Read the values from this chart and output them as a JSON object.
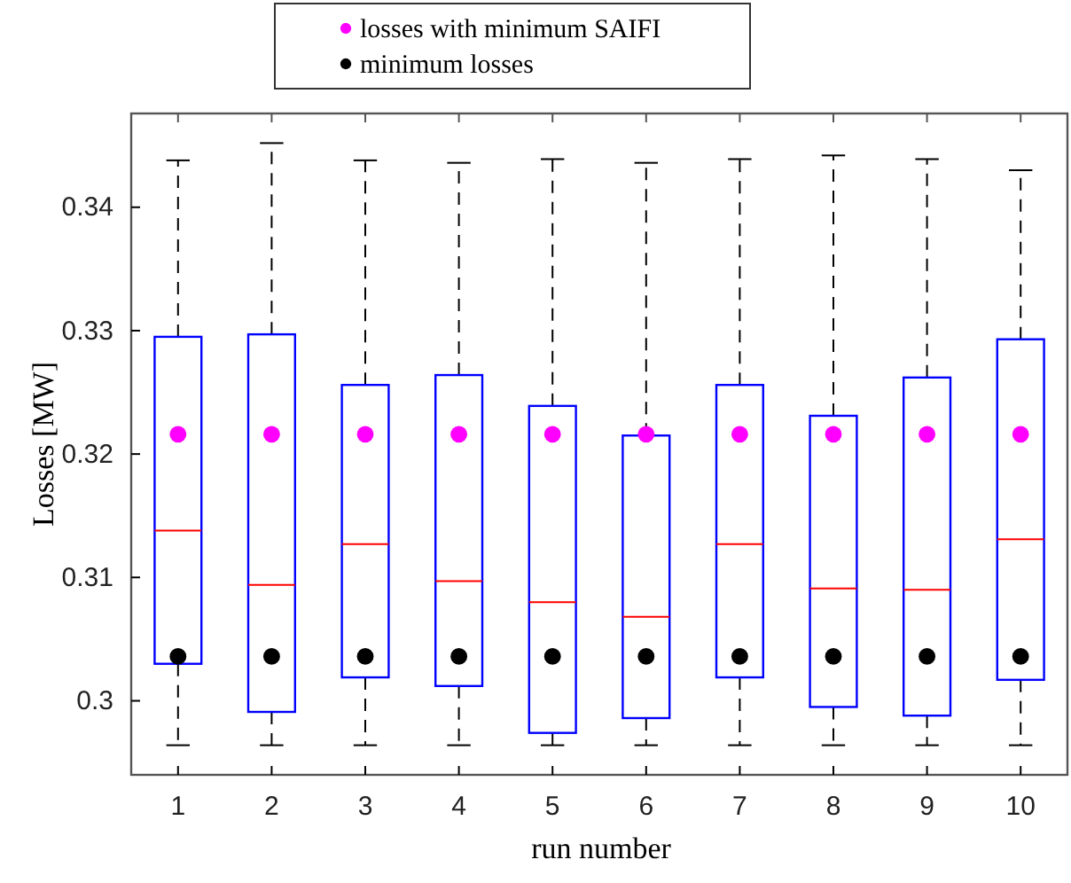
{
  "chart_data": {
    "type": "box",
    "xlabel": "run number",
    "ylabel": "Losses  [MW]",
    "categories": [
      "1",
      "2",
      "3",
      "4",
      "5",
      "6",
      "7",
      "8",
      "9",
      "10"
    ],
    "ylim": [
      0.294,
      0.3476
    ],
    "yticks": [
      0.3,
      0.31,
      0.32,
      0.33,
      0.34
    ],
    "grid": false,
    "legend": "top",
    "series": [
      {
        "color": "#0000ff",
        "boxes": [
          {
            "low": 0.2964,
            "q1": 0.303,
            "median": 0.3138,
            "q3": 0.3295,
            "high": 0.3438
          },
          {
            "low": 0.2964,
            "q1": 0.2991,
            "median": 0.3094,
            "q3": 0.3297,
            "high": 0.3452
          },
          {
            "low": 0.2964,
            "q1": 0.3019,
            "median": 0.3127,
            "q3": 0.3256,
            "high": 0.3438
          },
          {
            "low": 0.2964,
            "q1": 0.3012,
            "median": 0.3097,
            "q3": 0.3264,
            "high": 0.3436
          },
          {
            "low": 0.2964,
            "q1": 0.2974,
            "median": 0.308,
            "q3": 0.3239,
            "high": 0.3439
          },
          {
            "low": 0.2964,
            "q1": 0.2986,
            "median": 0.3068,
            "q3": 0.3215,
            "high": 0.3436
          },
          {
            "low": 0.2964,
            "q1": 0.3019,
            "median": 0.3127,
            "q3": 0.3256,
            "high": 0.3439
          },
          {
            "low": 0.2964,
            "q1": 0.2995,
            "median": 0.3091,
            "q3": 0.3231,
            "high": 0.3442
          },
          {
            "low": 0.2964,
            "q1": 0.2988,
            "median": 0.309,
            "q3": 0.3262,
            "high": 0.3439
          },
          {
            "low": 0.2964,
            "q1": 0.3017,
            "median": 0.3131,
            "q3": 0.3293,
            "high": 0.343
          }
        ]
      },
      {
        "type": "scatter",
        "name": "losses with minimum SAIFI",
        "color": "#ff00ff",
        "marker": "circle",
        "x": [
          "1",
          "2",
          "3",
          "4",
          "5",
          "6",
          "7",
          "8",
          "9",
          "10"
        ],
        "values": [
          0.3216,
          0.3216,
          0.3216,
          0.3216,
          0.3216,
          0.3216,
          0.3216,
          0.3216,
          0.3216,
          0.3216
        ]
      },
      {
        "type": "scatter",
        "name": "minimum losses",
        "color": "#000000",
        "marker": "circle",
        "x": [
          "1",
          "2",
          "3",
          "4",
          "5",
          "6",
          "7",
          "8",
          "9",
          "10"
        ],
        "values": [
          0.3036,
          0.3036,
          0.3036,
          0.3036,
          0.3036,
          0.3036,
          0.3036,
          0.3036,
          0.3036,
          0.3036
        ]
      }
    ]
  }
}
